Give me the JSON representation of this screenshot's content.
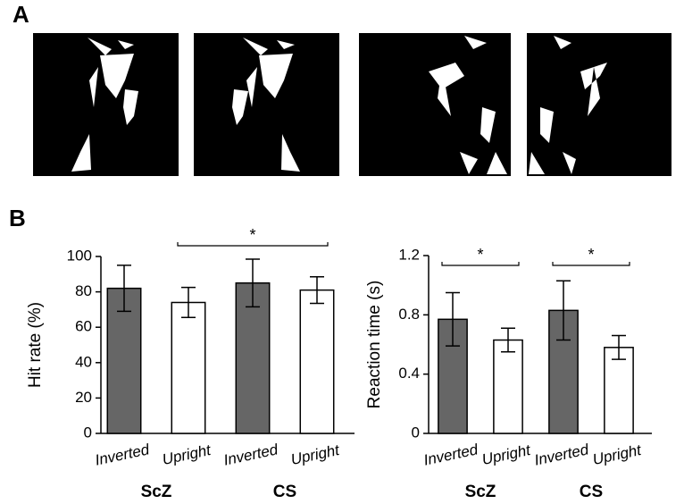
{
  "panel_labels": {
    "a": "A",
    "b": "B"
  },
  "chart_data": [
    {
      "type": "bar",
      "ylabel": "Hit rate (%)",
      "categories": [
        "Inverted",
        "Upright",
        "Inverted",
        "Upright"
      ],
      "groups": [
        "ScZ",
        "CS"
      ],
      "values": [
        82,
        74,
        85,
        81
      ],
      "errors": [
        13,
        8.5,
        13.5,
        7.5
      ],
      "colors": [
        "#666666",
        "#ffffff",
        "#666666",
        "#ffffff"
      ],
      "ylim": [
        0,
        100
      ],
      "yticks": [
        0,
        20,
        40,
        60,
        80,
        100
      ],
      "significance": [
        {
          "label": "*",
          "between": [
            1,
            3
          ]
        }
      ]
    },
    {
      "type": "bar",
      "ylabel": "Reaction time (s)",
      "categories": [
        "Inverted",
        "Upright",
        "Inverted",
        "Upright"
      ],
      "groups": [
        "ScZ",
        "CS"
      ],
      "values": [
        0.77,
        0.63,
        0.83,
        0.58
      ],
      "errors": [
        0.18,
        0.08,
        0.2,
        0.08
      ],
      "colors": [
        "#666666",
        "#ffffff",
        "#666666",
        "#ffffff"
      ],
      "ylim": [
        0,
        1.2
      ],
      "yticks": [
        0,
        0.4,
        0.8,
        1.2
      ],
      "significance": [
        {
          "label": "*",
          "between": [
            0,
            1
          ]
        },
        {
          "label": "*",
          "between": [
            2,
            3
          ]
        }
      ]
    }
  ]
}
